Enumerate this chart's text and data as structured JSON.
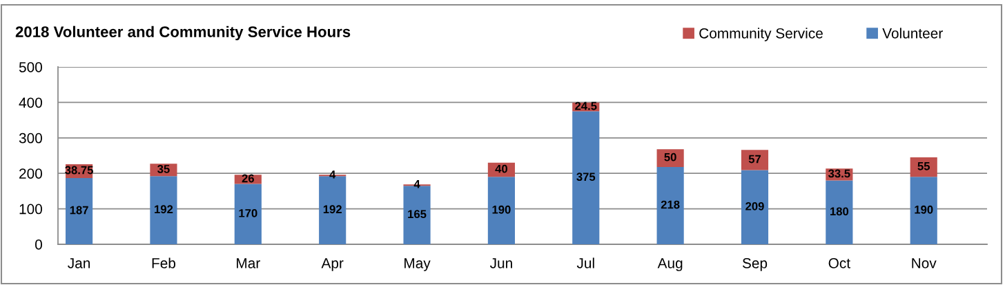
{
  "chart_data": {
    "type": "bar",
    "title": "2018 Volunteer and Community Service Hours",
    "categories": [
      "Jan",
      "Feb",
      "Mar",
      "Apr",
      "May",
      "Jun",
      "Jul",
      "Aug",
      "Sep",
      "Oct",
      "Nov"
    ],
    "series": [
      {
        "name": "Volunteer",
        "color": "#4f81bd",
        "values": [
          187,
          192,
          170,
          192,
          165,
          190,
          375,
          218,
          209,
          180,
          190
        ]
      },
      {
        "name": "Community Service",
        "color": "#c0504d",
        "values": [
          38.75,
          35,
          26,
          4,
          4,
          40,
          24.5,
          50,
          57,
          33.5,
          55
        ]
      }
    ],
    "stacked": true,
    "data_labels": true,
    "ylim": [
      0,
      500
    ],
    "yticks": [
      0,
      100,
      200,
      300,
      400,
      500
    ],
    "grid": "y",
    "legend": "top right"
  }
}
